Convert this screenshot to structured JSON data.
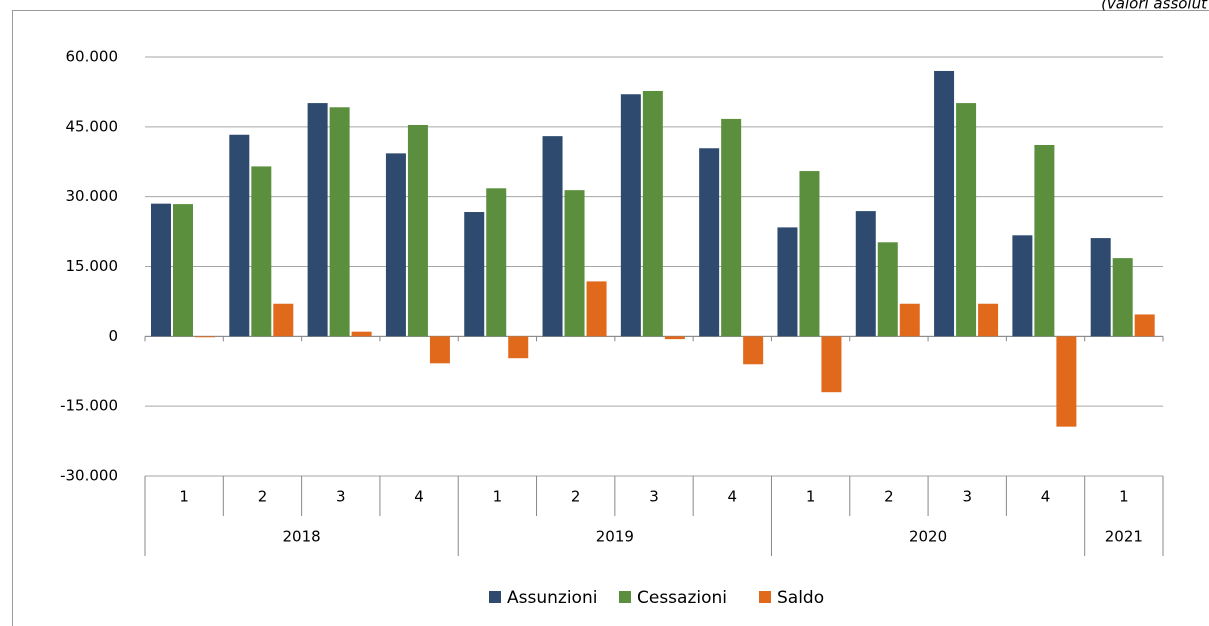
{
  "chart_data": {
    "type": "bar",
    "subtitle": "(valori assolut",
    "categories": [
      "1",
      "2",
      "3",
      "4",
      "1",
      "2",
      "3",
      "4",
      "1",
      "2",
      "3",
      "4",
      "1"
    ],
    "years": [
      "2018",
      null,
      null,
      null,
      "2019",
      null,
      null,
      null,
      "2020",
      null,
      null,
      null,
      "2021"
    ],
    "series": [
      {
        "name": "Assunzioni",
        "color": "#2e4a6f",
        "values": [
          28500,
          43300,
          50100,
          39300,
          26700,
          43000,
          52000,
          40400,
          23400,
          26900,
          57000,
          21700,
          21100
        ]
      },
      {
        "name": "Cessazioni",
        "color": "#5b8f3d",
        "values": [
          28400,
          36500,
          49200,
          45400,
          31800,
          31400,
          52700,
          46700,
          35500,
          20200,
          50100,
          41100,
          16800
        ]
      },
      {
        "name": "Saldo",
        "color": "#e0691c",
        "values": [
          -200,
          7000,
          1000,
          -5800,
          -4700,
          11800,
          -600,
          -6000,
          -12000,
          7000,
          7000,
          -19400,
          4700
        ]
      }
    ],
    "ylim": [
      -30000,
      60000
    ],
    "yticks": [
      {
        "value": -30000,
        "label": "-30.000"
      },
      {
        "value": -15000,
        "label": "-15.000"
      },
      0,
      {
        "value": 15000,
        "label": "15.000"
      },
      {
        "value": 30000,
        "label": "30.000"
      },
      {
        "value": 45000,
        "label": "45.000"
      },
      {
        "value": 60000,
        "label": "60.000"
      }
    ],
    "grid": true,
    "legend": "bottom"
  }
}
